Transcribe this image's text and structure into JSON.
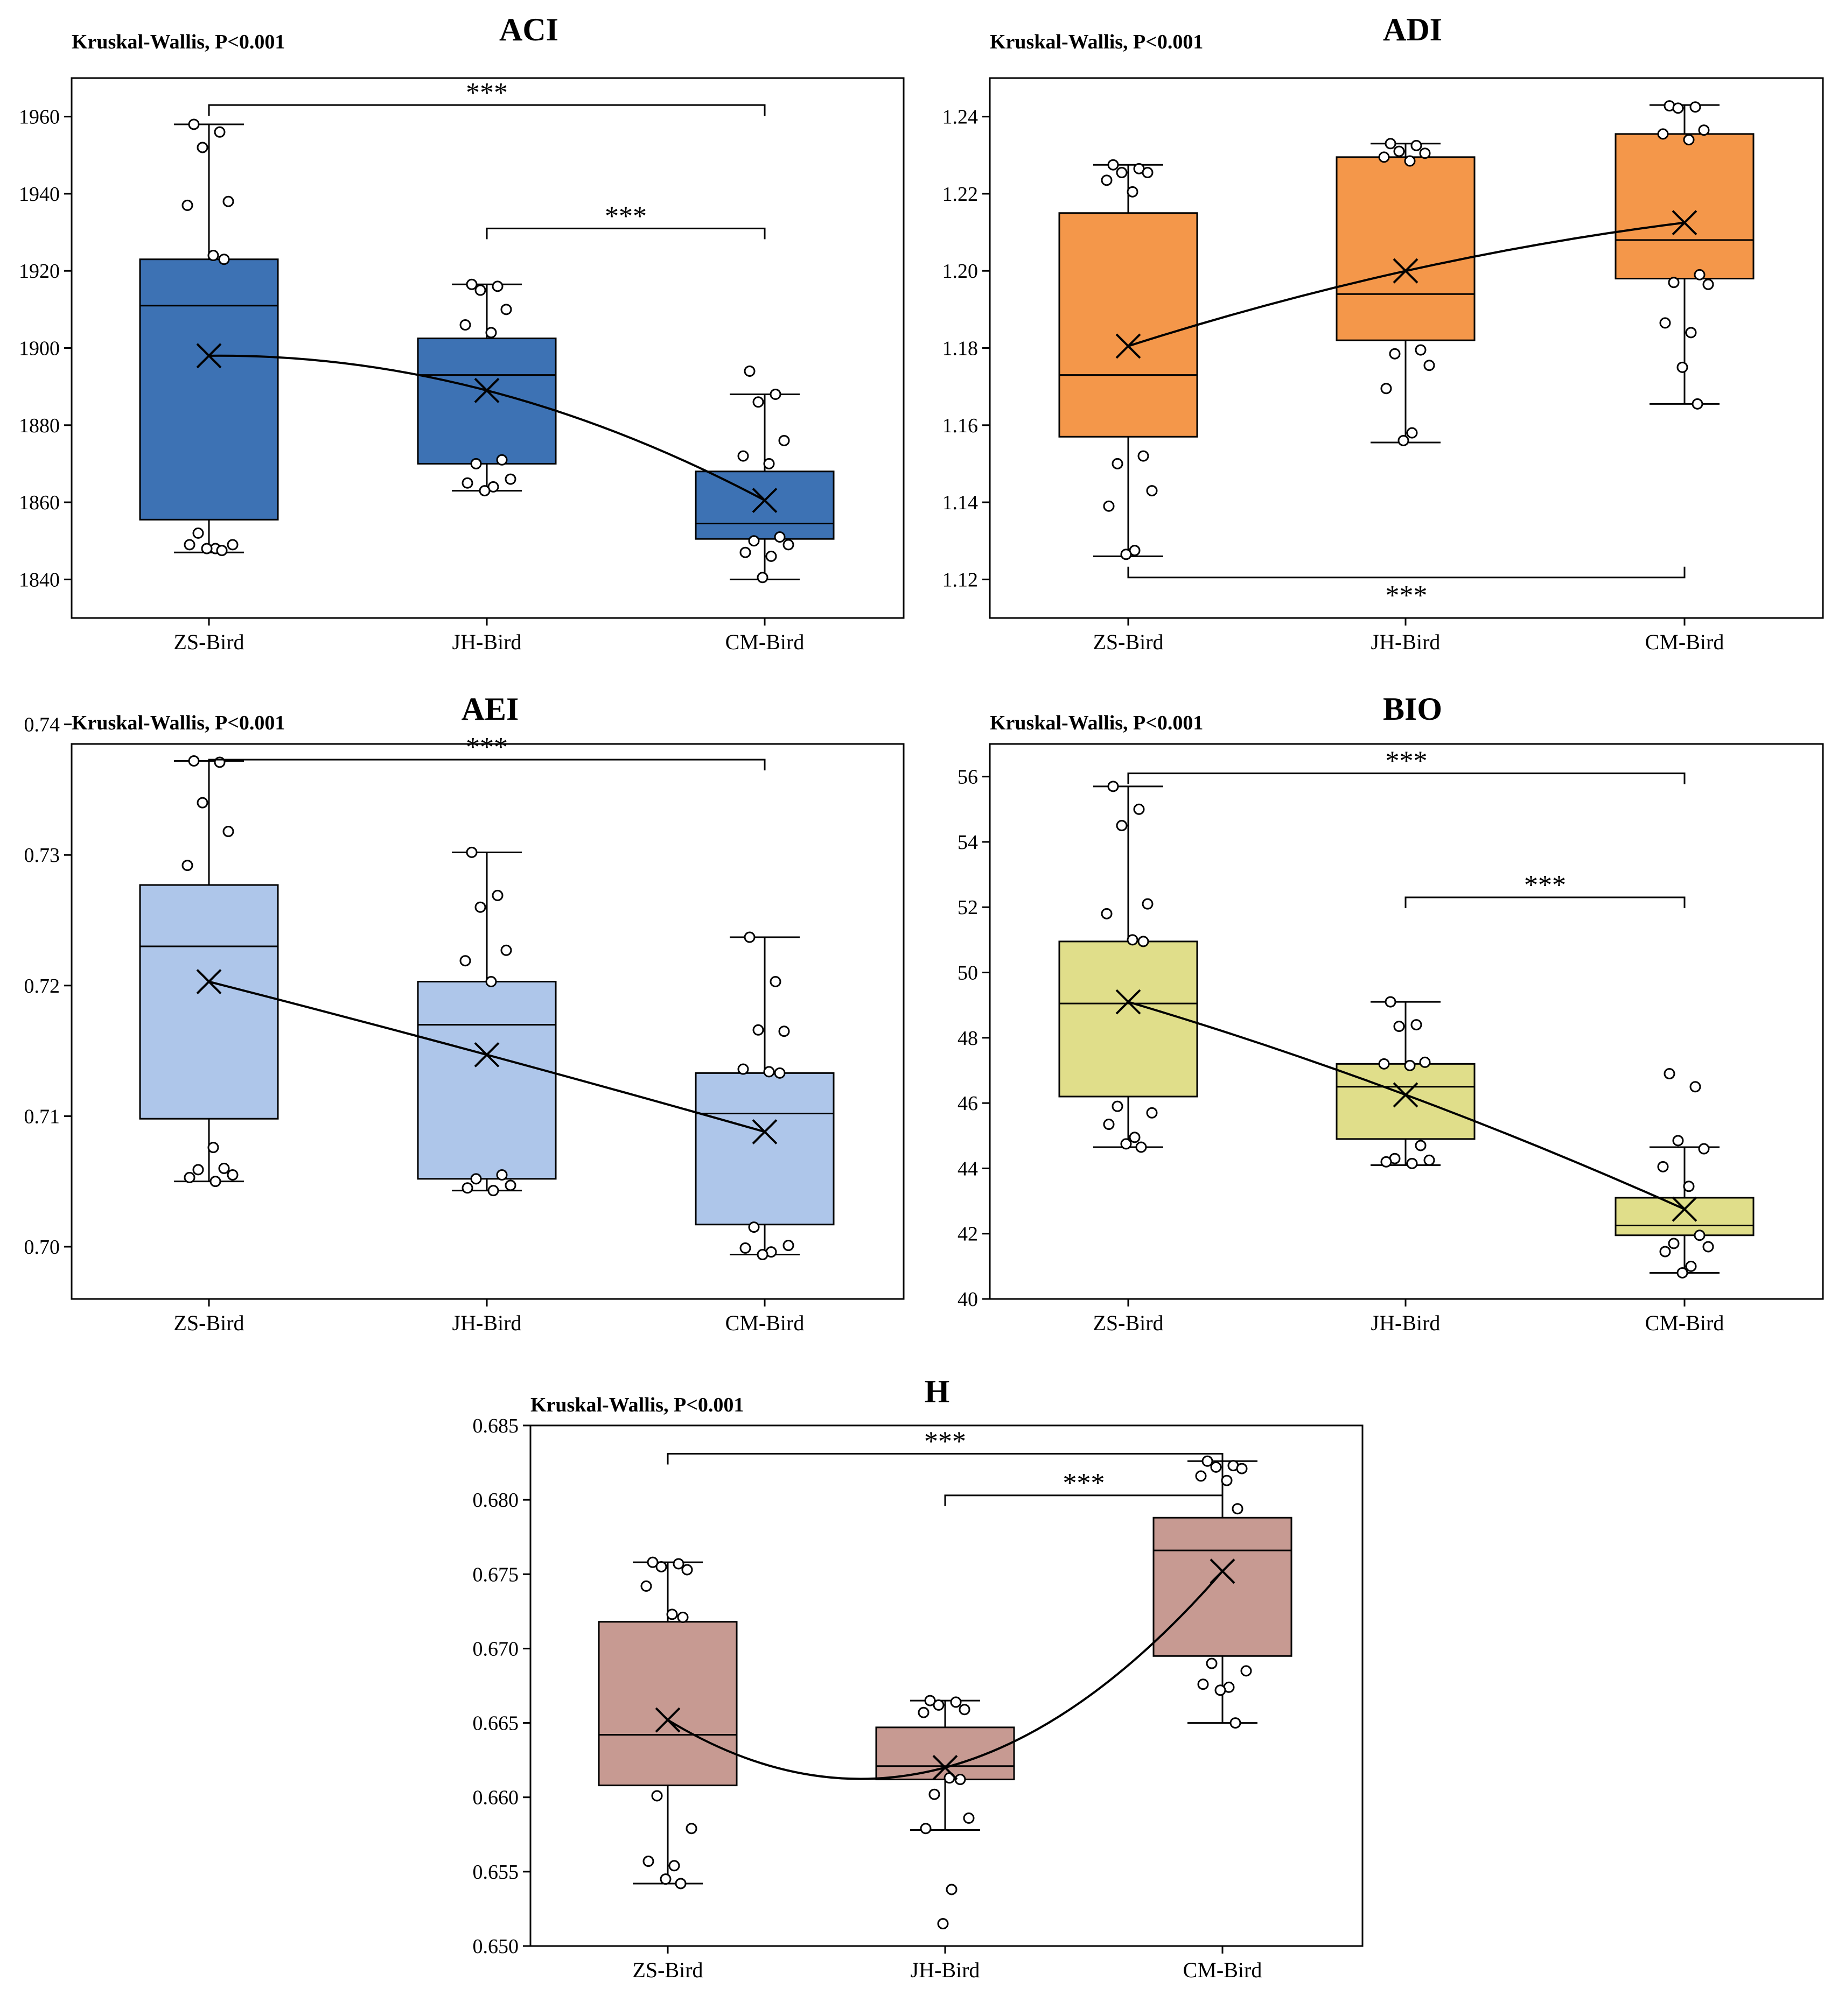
{
  "chart_data": [
    {
      "type": "box",
      "title": "ACI",
      "test_label": "Kruskal-Wallis, P<0.001",
      "categories": [
        "ZS-Bird",
        "JH-Bird",
        "CM-Bird"
      ],
      "ylim": [
        1830,
        1970
      ],
      "yticks": [
        1840,
        1860,
        1880,
        1900,
        1920,
        1940,
        1960
      ],
      "ytick_labels": [
        "1840",
        "1860",
        "1880",
        "1900",
        "1920",
        "1940",
        "1960"
      ],
      "box_color": "#3d72b4",
      "boxes": [
        {
          "lower_whisker": 1847,
          "q1": 1855.5,
          "median": 1911,
          "q3": 1923,
          "upper_whisker": 1958,
          "mean": 1898,
          "points": [
            1958,
            1956,
            1952,
            1938,
            1937,
            1924,
            1923,
            1852,
            1849,
            1849,
            1848,
            1848,
            1847.5
          ]
        },
        {
          "lower_whisker": 1863,
          "q1": 1870,
          "median": 1893,
          "q3": 1902.5,
          "upper_whisker": 1916.5,
          "mean": 1889,
          "points": [
            1916.5,
            1916,
            1915,
            1910,
            1906,
            1904,
            1871,
            1870,
            1866,
            1865,
            1864,
            1863
          ]
        },
        {
          "lower_whisker": 1840,
          "q1": 1850.5,
          "median": 1854.5,
          "q3": 1868,
          "upper_whisker": 1888,
          "mean": 1860.5,
          "points": [
            1894,
            1888,
            1886,
            1876,
            1872,
            1870,
            1851,
            1850,
            1849,
            1847,
            1846,
            1840.5
          ]
        }
      ],
      "brackets": [
        {
          "from": 0,
          "to": 2,
          "y": 1963,
          "label": "***"
        },
        {
          "from": 1,
          "to": 2,
          "y": 1931,
          "label": "***"
        }
      ]
    },
    {
      "type": "box",
      "title": "ADI",
      "test_label": "Kruskal-Wallis, P<0.001",
      "categories": [
        "ZS-Bird",
        "JH-Bird",
        "CM-Bird"
      ],
      "ylim": [
        1.11,
        1.25
      ],
      "yticks": [
        1.12,
        1.14,
        1.16,
        1.18,
        1.2,
        1.22,
        1.24
      ],
      "ytick_labels": [
        "1.12",
        "1.14",
        "1.16",
        "1.18",
        "1.20",
        "1.22",
        "1.24"
      ],
      "box_color": "#f4974a",
      "boxes": [
        {
          "lower_whisker": 1.126,
          "q1": 1.157,
          "median": 1.173,
          "q3": 1.215,
          "upper_whisker": 1.2275,
          "mean": 1.1805,
          "points": [
            1.2275,
            1.2265,
            1.2255,
            1.2255,
            1.2235,
            1.2205,
            1.152,
            1.15,
            1.143,
            1.139,
            1.1275,
            1.1265
          ]
        },
        {
          "lower_whisker": 1.1555,
          "q1": 1.182,
          "median": 1.194,
          "q3": 1.2295,
          "upper_whisker": 1.233,
          "mean": 1.2,
          "points": [
            1.233,
            1.2325,
            1.231,
            1.2305,
            1.2295,
            1.2285,
            1.1795,
            1.1785,
            1.1755,
            1.1695,
            1.158,
            1.156
          ]
        },
        {
          "lower_whisker": 1.1655,
          "q1": 1.198,
          "median": 1.208,
          "q3": 1.2355,
          "upper_whisker": 1.243,
          "mean": 1.2125,
          "points": [
            1.2428,
            1.2425,
            1.2422,
            1.2365,
            1.2355,
            1.234,
            1.199,
            1.197,
            1.1965,
            1.1865,
            1.184,
            1.175,
            1.1655
          ]
        }
      ],
      "brackets": [
        {
          "from": 0,
          "to": 2,
          "y": 1.1205,
          "label": "***",
          "direction": "down"
        }
      ]
    },
    {
      "type": "box",
      "title": "AEI",
      "test_label": "Kruskal-Wallis, P<0.001",
      "categories": [
        "ZS-Bird",
        "JH-Bird",
        "CM-Bird"
      ],
      "ylim": [
        0.696,
        0.7385
      ],
      "yticks": [
        0.7,
        0.71,
        0.72,
        0.73,
        0.74
      ],
      "ytick_labels": [
        "0.70",
        "0.71",
        "0.72",
        "0.73",
        "0.74"
      ],
      "box_color": "#aec6ea",
      "boxes": [
        {
          "lower_whisker": 0.705,
          "q1": 0.7098,
          "median": 0.723,
          "q3": 0.7277,
          "upper_whisker": 0.7372,
          "mean": 0.7203,
          "points": [
            0.7372,
            0.7371,
            0.734,
            0.7318,
            0.7292,
            0.7076,
            0.706,
            0.7059,
            0.7055,
            0.7053,
            0.705
          ]
        },
        {
          "lower_whisker": 0.7043,
          "q1": 0.7052,
          "median": 0.717,
          "q3": 0.7203,
          "upper_whisker": 0.7302,
          "mean": 0.7147,
          "points": [
            0.7302,
            0.7269,
            0.726,
            0.7227,
            0.7219,
            0.7203,
            0.7055,
            0.7052,
            0.7047,
            0.7045,
            0.7043
          ]
        },
        {
          "lower_whisker": 0.6994,
          "q1": 0.7017,
          "median": 0.7102,
          "q3": 0.7133,
          "upper_whisker": 0.7237,
          "mean": 0.7088,
          "points": [
            0.7237,
            0.7203,
            0.7166,
            0.7165,
            0.7136,
            0.7134,
            0.7133,
            0.7015,
            0.7001,
            0.6999,
            0.6996,
            0.6994
          ]
        }
      ],
      "brackets": [
        {
          "from": 0,
          "to": 2,
          "y": 0.7373,
          "label": "***"
        }
      ]
    },
    {
      "type": "box",
      "title": "BIO",
      "test_label": "Kruskal-Wallis, P<0.001",
      "categories": [
        "ZS-Bird",
        "JH-Bird",
        "CM-Bird"
      ],
      "ylim": [
        40,
        57
      ],
      "yticks": [
        40,
        42,
        44,
        46,
        48,
        50,
        52,
        54,
        56
      ],
      "ytick_labels": [
        "40",
        "42",
        "44",
        "46",
        "48",
        "50",
        "52",
        "54",
        "56"
      ],
      "box_color": "#e0de8a",
      "boxes": [
        {
          "lower_whisker": 44.65,
          "q1": 46.2,
          "median": 49.05,
          "q3": 50.95,
          "upper_whisker": 55.7,
          "mean": 49.1,
          "points": [
            55.7,
            55.0,
            54.5,
            52.1,
            51.8,
            51.0,
            50.95,
            45.9,
            45.7,
            45.35,
            44.95,
            44.75,
            44.65
          ]
        },
        {
          "lower_whisker": 44.1,
          "q1": 44.9,
          "median": 46.5,
          "q3": 47.2,
          "upper_whisker": 49.1,
          "mean": 46.25,
          "points": [
            49.1,
            48.4,
            48.35,
            47.25,
            47.2,
            47.15,
            44.7,
            44.3,
            44.25,
            44.2,
            44.15
          ]
        },
        {
          "lower_whisker": 40.8,
          "q1": 41.95,
          "median": 42.25,
          "q3": 43.1,
          "upper_whisker": 44.65,
          "mean": 42.75,
          "points": [
            46.9,
            46.5,
            44.85,
            44.6,
            44.05,
            43.45,
            41.95,
            41.7,
            41.6,
            41.45,
            41.0,
            40.8
          ]
        }
      ],
      "brackets": [
        {
          "from": 0,
          "to": 2,
          "y": 56.1,
          "label": "***"
        },
        {
          "from": 1,
          "to": 2,
          "y": 52.3,
          "label": "***"
        }
      ]
    },
    {
      "type": "box",
      "title": "H",
      "test_label": "Kruskal-Wallis, P<0.001",
      "categories": [
        "ZS-Bird",
        "JH-Bird",
        "CM-Bird"
      ],
      "ylim": [
        0.65,
        0.685
      ],
      "yticks": [
        0.65,
        0.655,
        0.66,
        0.665,
        0.67,
        0.675,
        0.68,
        0.685
      ],
      "ytick_labels": [
        "0.650",
        "0.655",
        "0.660",
        "0.665",
        "0.670",
        "0.675",
        "0.680",
        "0.685"
      ],
      "box_color": "#c79a92",
      "boxes": [
        {
          "lower_whisker": 0.6542,
          "q1": 0.6608,
          "median": 0.6642,
          "q3": 0.6718,
          "upper_whisker": 0.6758,
          "mean": 0.6652,
          "points": [
            0.6758,
            0.6757,
            0.6755,
            0.6753,
            0.6742,
            0.6723,
            0.6721,
            0.6601,
            0.6579,
            0.6557,
            0.6554,
            0.6545,
            0.6542
          ]
        },
        {
          "lower_whisker": 0.6578,
          "q1": 0.6612,
          "median": 0.6621,
          "q3": 0.6647,
          "upper_whisker": 0.6665,
          "mean": 0.662,
          "points": [
            0.6665,
            0.6664,
            0.6662,
            0.6659,
            0.6657,
            0.6613,
            0.6612,
            0.6602,
            0.6586,
            0.6579,
            0.6538,
            0.6515
          ]
        },
        {
          "lower_whisker": 0.665,
          "q1": 0.6695,
          "median": 0.6766,
          "q3": 0.6788,
          "upper_whisker": 0.6826,
          "mean": 0.6752,
          "points": [
            0.6826,
            0.6823,
            0.6822,
            0.6821,
            0.6816,
            0.6813,
            0.6794,
            0.669,
            0.6685,
            0.6676,
            0.6674,
            0.6672,
            0.665
          ]
        }
      ],
      "brackets": [
        {
          "from": 0,
          "to": 2,
          "y": 0.6831,
          "label": "***"
        },
        {
          "from": 1,
          "to": 2,
          "y": 0.6803,
          "label": "***"
        }
      ]
    }
  ]
}
